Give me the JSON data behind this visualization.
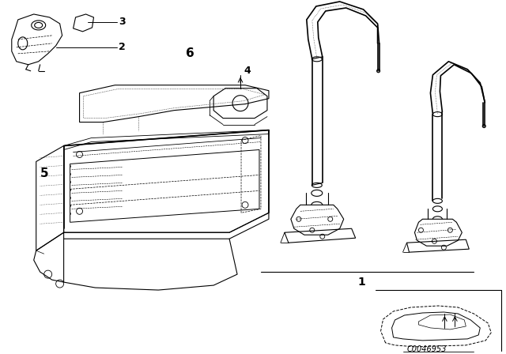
{
  "background_color": "#ffffff",
  "line_color": "#000000",
  "fig_width": 6.4,
  "fig_height": 4.48,
  "dpi": 100,
  "parts": {
    "part1_label": "1",
    "part2_label": "2",
    "part3_label": "3",
    "part4_label": "4",
    "part5_label": "5",
    "part6_label": "6"
  },
  "catalog_number": "C0046953"
}
